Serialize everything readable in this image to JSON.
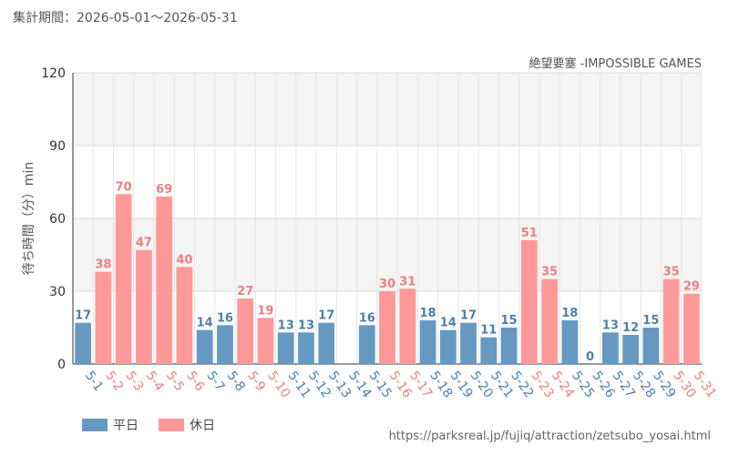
{
  "period_label": "集計期間：2026-05-01～2026-05-31",
  "source_url": "https://parksreal.jp/fujiq/attraction/zetsubo_yosai.html",
  "colors": {
    "weekday": "#6699c2",
    "holiday": "#ff9999",
    "weekday_text": "#4d7fab",
    "holiday_text": "#ee7f7f",
    "band": "#f4f4f4"
  },
  "chart_data": {
    "type": "bar",
    "title": "絶望要塞 -IMPOSSIBLE GAMES",
    "ylabel": "待ち時間（分）min",
    "ylim": [
      0,
      120
    ],
    "yticks": [
      0,
      30,
      60,
      90,
      120
    ],
    "grid": true,
    "legend_position": "bottom-left",
    "categories": [
      "5-1",
      "5-2",
      "5-3",
      "5-4",
      "5-5",
      "5-6",
      "5-7",
      "5-8",
      "5-9",
      "5-10",
      "5-11",
      "5-12",
      "5-13",
      "5-14",
      "5-15",
      "5-16",
      "5-17",
      "5-18",
      "5-19",
      "5-20",
      "5-21",
      "5-22",
      "5-23",
      "5-24",
      "5-25",
      "5-26",
      "5-27",
      "5-28",
      "5-29",
      "5-30",
      "5-31"
    ],
    "values": [
      17,
      38,
      70,
      47,
      69,
      40,
      14,
      16,
      27,
      19,
      13,
      13,
      17,
      null,
      16,
      30,
      31,
      18,
      14,
      17,
      11,
      15,
      51,
      35,
      18,
      0,
      13,
      12,
      15,
      35,
      29
    ],
    "day_type": [
      "weekday",
      "holiday",
      "holiday",
      "holiday",
      "holiday",
      "holiday",
      "weekday",
      "weekday",
      "holiday",
      "holiday",
      "weekday",
      "weekday",
      "weekday",
      "weekday",
      "weekday",
      "holiday",
      "holiday",
      "weekday",
      "weekday",
      "weekday",
      "weekday",
      "weekday",
      "holiday",
      "holiday",
      "weekday",
      "weekday",
      "weekday",
      "weekday",
      "weekday",
      "holiday",
      "holiday"
    ],
    "legend": [
      {
        "key": "weekday",
        "label": "平日"
      },
      {
        "key": "holiday",
        "label": "休日"
      }
    ]
  }
}
